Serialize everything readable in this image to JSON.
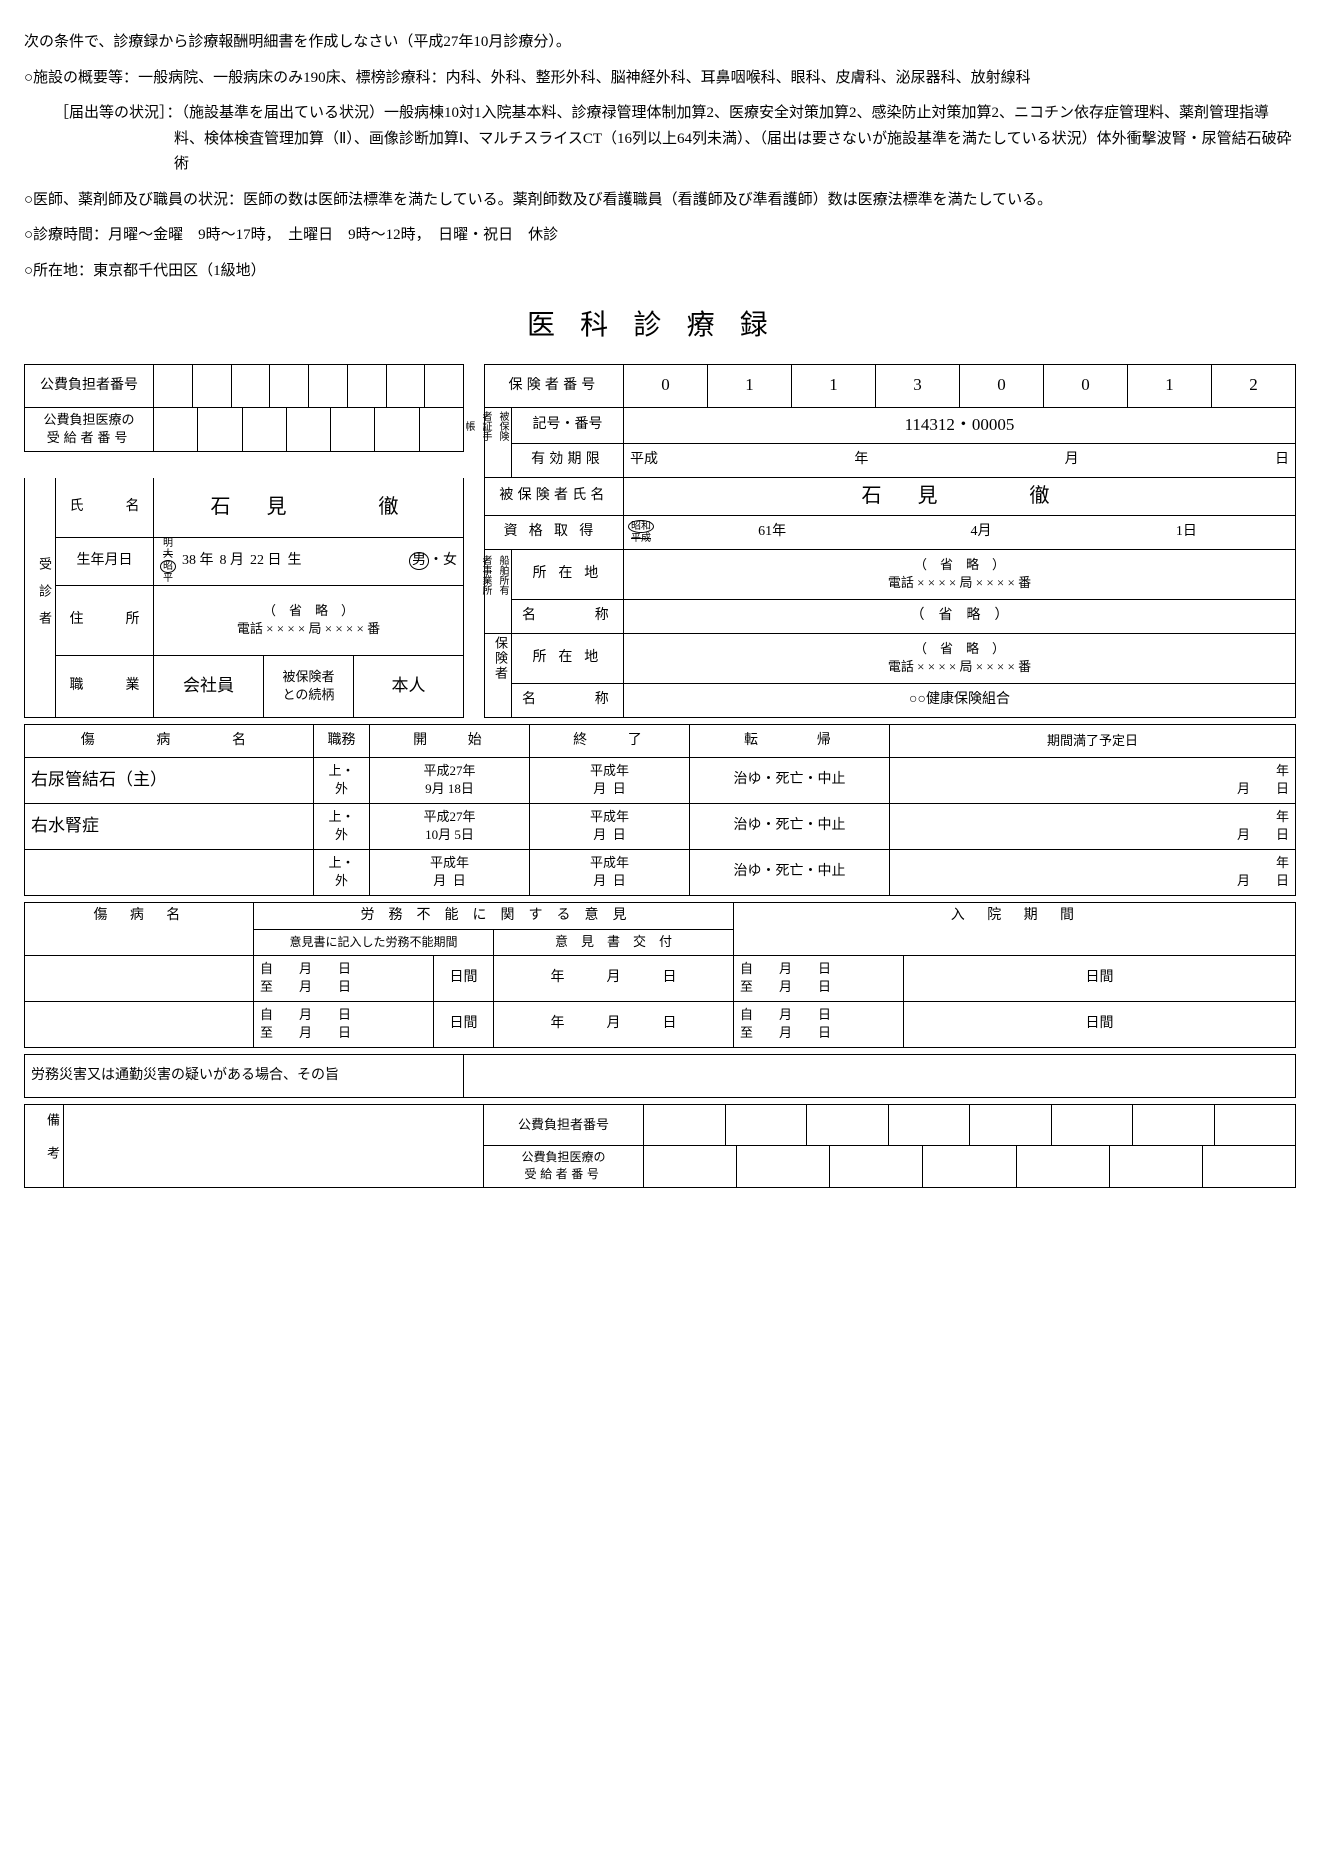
{
  "intro": {
    "line1": "次の条件で、診療録から診療報酬明細書を作成しなさい（平成27年10月診療分）。",
    "facility_label": "○施設の概要等：",
    "facility_text1": "一般病院、一般病床のみ190床、標榜診療科：内科、外科、整形外科、脳神経外科、耳鼻咽喉科、眼科、皮膚科、泌尿器科、放射線科",
    "todokede_label": "［届出等の状況］：",
    "todokede_text": "（施設基準を届出ている状況）一般病棟10対1入院基本料、診療禄管理体制加算2、医療安全対策加算2、感染防止対策加算2、ニコチン依存症管理料、薬剤管理指導料、検体検査管理加算（Ⅱ）、画像診断加算Ⅰ、マルチスライスCT（16列以上64列未満）、（届出は要さないが施設基準を満たしている状況）体外衝撃波腎・尿管結石破砕術",
    "doctors_label": "○医師、薬剤師及び職員の状況：",
    "doctors_text": "医師の数は医師法標準を満たしている。薬剤師数及び看護職員（看護師及び準看護師）数は医療法標準を満たしている。",
    "hours_label": "○診療時間：",
    "hours_text": "月曜～金曜　9時～17時，　土曜日　9時～12時，　日曜・祝日　休診",
    "address_label": "○所在地：",
    "address_text": "東京都千代田区（1級地）"
  },
  "title": "医科診療録",
  "labels": {
    "kouhi_futan": "公費負担者番号",
    "kouhi_iryou": "公費負担医療の\n受給者番号",
    "hokensha_bangou": "保険者番号",
    "hihokensha_techou": "被保険者手帳",
    "kigou_bangou": "記号・番号",
    "yuukou_kigen": "有効期限",
    "hihokensha_shimei": "被保険者氏名",
    "shikaku_shutoku": "資格取得",
    "jushin_sha": "受診者",
    "shimei": "氏　　　名",
    "seinengappi": "生年月日",
    "juusho": "住　　　所",
    "shokugyou": "職　　　業",
    "zokugara": "被保険者\nとの続柄",
    "senpaku": "（船舶所有者）事業所",
    "shozaichi": "所 在 地",
    "meishou": "名　　　称",
    "hokensha": "保険者",
    "shoubyoumei": "傷　　病　　名",
    "shokumu": "職務",
    "kaishi": "開　　始",
    "shuuryou": "終　　了",
    "tenki": "転　　　帰",
    "kikan_manryou": "期間満了予定日",
    "roumu_funou": "労　務　不　能　に　関　す　る　意　見",
    "iken_kikan": "意見書に記入した労務不能期間",
    "ikensho_koufu": "意　見　書　交　付",
    "nyuuin_kikan": "入　院　期　間",
    "roumu_saigai": "労務災害又は通勤災害の疑いがある場合、その旨",
    "bikou": "備考",
    "heisei": "平成",
    "nen": "年",
    "gatsu": "月",
    "hi": "日",
    "shouwa": "昭和",
    "ue_soto": "上・\n外",
    "tenki_text": "治ゆ・死亡・中止",
    "shouryaku": "（　省　略　）",
    "denwa": "電話 × × × × 局 × × × × 番",
    "ji_shi": "自　　　月　　　日\n至　　　月　　　日",
    "nikkan": "日間",
    "ymd_blank": "年　　　月　　　日",
    "era_mei": "明",
    "era_tai": "大",
    "era_shou": "昭",
    "era_hei": "平",
    "otoko": "男",
    "onna": "女",
    "sei": "生"
  },
  "hokensha_digits": [
    "0",
    "1",
    "1",
    "3",
    "0",
    "0",
    "1",
    "2"
  ],
  "kigou_bangou_val": "114312・00005",
  "patient": {
    "name": "石　見　　　徹",
    "birth_year": "38 年",
    "birth_month": "8 月",
    "birth_day": "22 日",
    "occupation": "会社員",
    "relation": "本人"
  },
  "insured_name": "石　見　　　徹",
  "shikaku": {
    "year": "61年",
    "month": "4月",
    "day": "1日"
  },
  "hokensha_name": "○○健康保険組合",
  "diseases": [
    {
      "name": "右尿管結石（主）",
      "start_y": "27年",
      "start_m": "9月",
      "start_d": "18日"
    },
    {
      "name": "右水腎症",
      "start_y": "27年",
      "start_m": "10月",
      "start_d": "5日"
    },
    {
      "name": "",
      "start_y": "年",
      "start_m": "月",
      "start_d": "日"
    }
  ]
}
